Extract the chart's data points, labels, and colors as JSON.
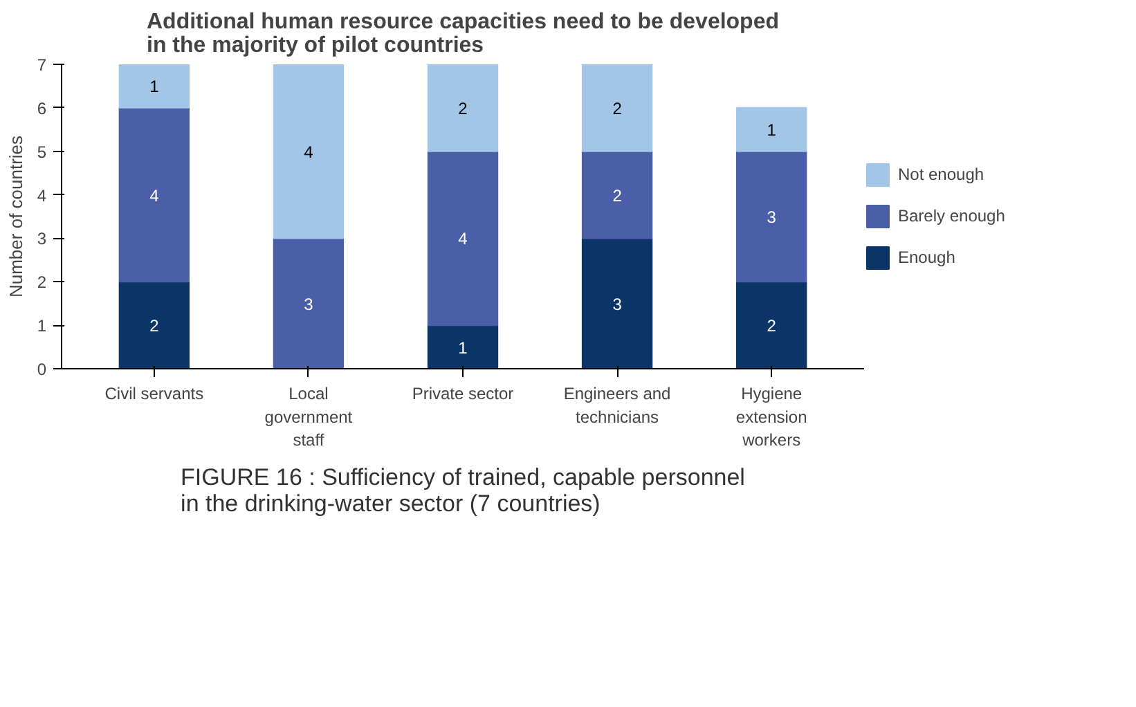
{
  "chart_data": {
    "type": "bar",
    "stacked": true,
    "title": "Additional human resource capacities need to be developed\nin the majority of pilot countries",
    "ylabel": "Number of countries",
    "categories": [
      "Civil servants",
      "Local\ngovernment\nstaff",
      "Private sector",
      "Engineers and\ntechnicians",
      "Hygiene\nextension\nworkers"
    ],
    "series": [
      {
        "name": "Enough",
        "color": "#0b3467",
        "values": [
          2,
          0,
          1,
          3,
          2
        ],
        "value_labels": [
          "2",
          null,
          "1",
          "3",
          "2"
        ]
      },
      {
        "name": "Barely enough",
        "color": "#4a5fa8",
        "values": [
          4,
          3,
          4,
          2,
          3
        ],
        "value_labels": [
          "4",
          "3",
          "4",
          "2",
          "3"
        ]
      },
      {
        "name": "Not enough",
        "color": "#a3c6e6",
        "values": [
          1,
          4,
          2,
          2,
          1
        ],
        "value_labels": [
          "1",
          "4",
          "2",
          "2",
          "1"
        ]
      }
    ],
    "ylim": [
      0,
      7
    ],
    "yticks": [
      0,
      1,
      2,
      3,
      4,
      5,
      6,
      7
    ],
    "grid": false,
    "legend": "right",
    "annotations": [
      "FIGURE 16 : Sufficiency of trained, capable personnel\nin the drinking-water sector (7 countries)"
    ]
  }
}
